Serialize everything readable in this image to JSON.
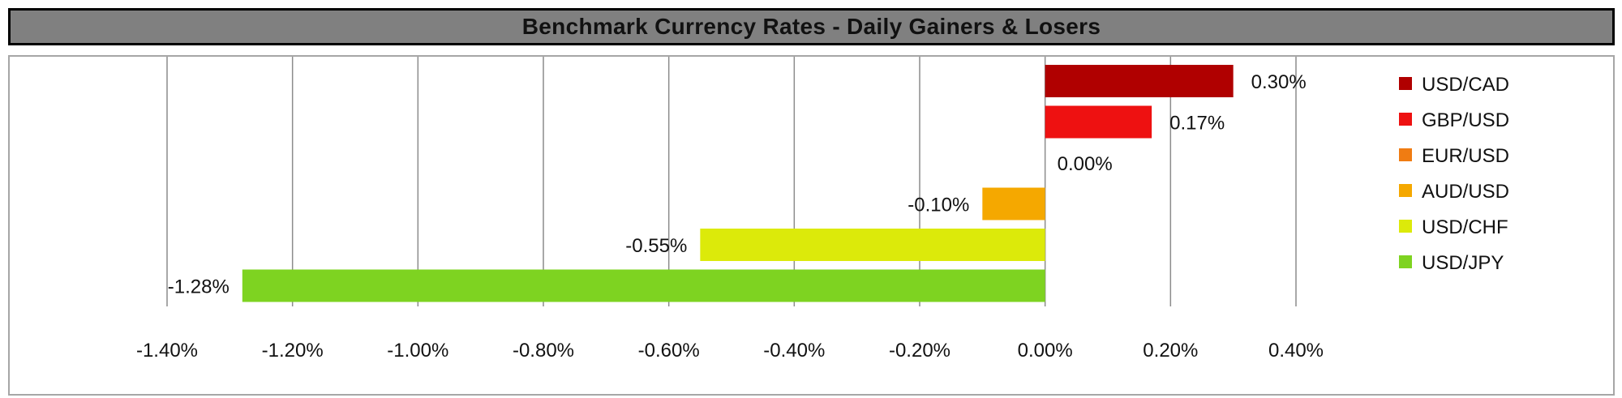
{
  "title": "Benchmark Currency Rates - Daily Gainers & Losers",
  "chart_data": {
    "type": "bar",
    "orientation": "horizontal",
    "title": "Benchmark Currency Rates - Daily Gainers & Losers",
    "xlabel": "",
    "ylabel": "",
    "xlim": [
      -1.4,
      0.4
    ],
    "x_ticks": [
      -1.4,
      -1.2,
      -1.0,
      -0.8,
      -0.6,
      -0.4,
      -0.2,
      0.0,
      0.2,
      0.4
    ],
    "x_tick_labels": [
      "-1.40%",
      "-1.20%",
      "-1.00%",
      "-0.80%",
      "-0.60%",
      "-0.40%",
      "-0.20%",
      "0.00%",
      "0.20%",
      "0.40%"
    ],
    "grid": "vertical",
    "legend_position": "right",
    "categories": [
      "USD/CAD",
      "GBP/USD",
      "EUR/USD",
      "AUD/USD",
      "USD/CHF",
      "USD/JPY"
    ],
    "values": [
      0.3,
      0.17,
      0.0,
      -0.1,
      -0.55,
      -1.28
    ],
    "value_labels": [
      "0.30%",
      "0.17%",
      "0.00%",
      "-0.10%",
      "-0.55%",
      "-1.28%"
    ],
    "colors": [
      "#b00000",
      "#ee1111",
      "#f07c12",
      "#f5a800",
      "#dcea0a",
      "#7ed321"
    ]
  }
}
